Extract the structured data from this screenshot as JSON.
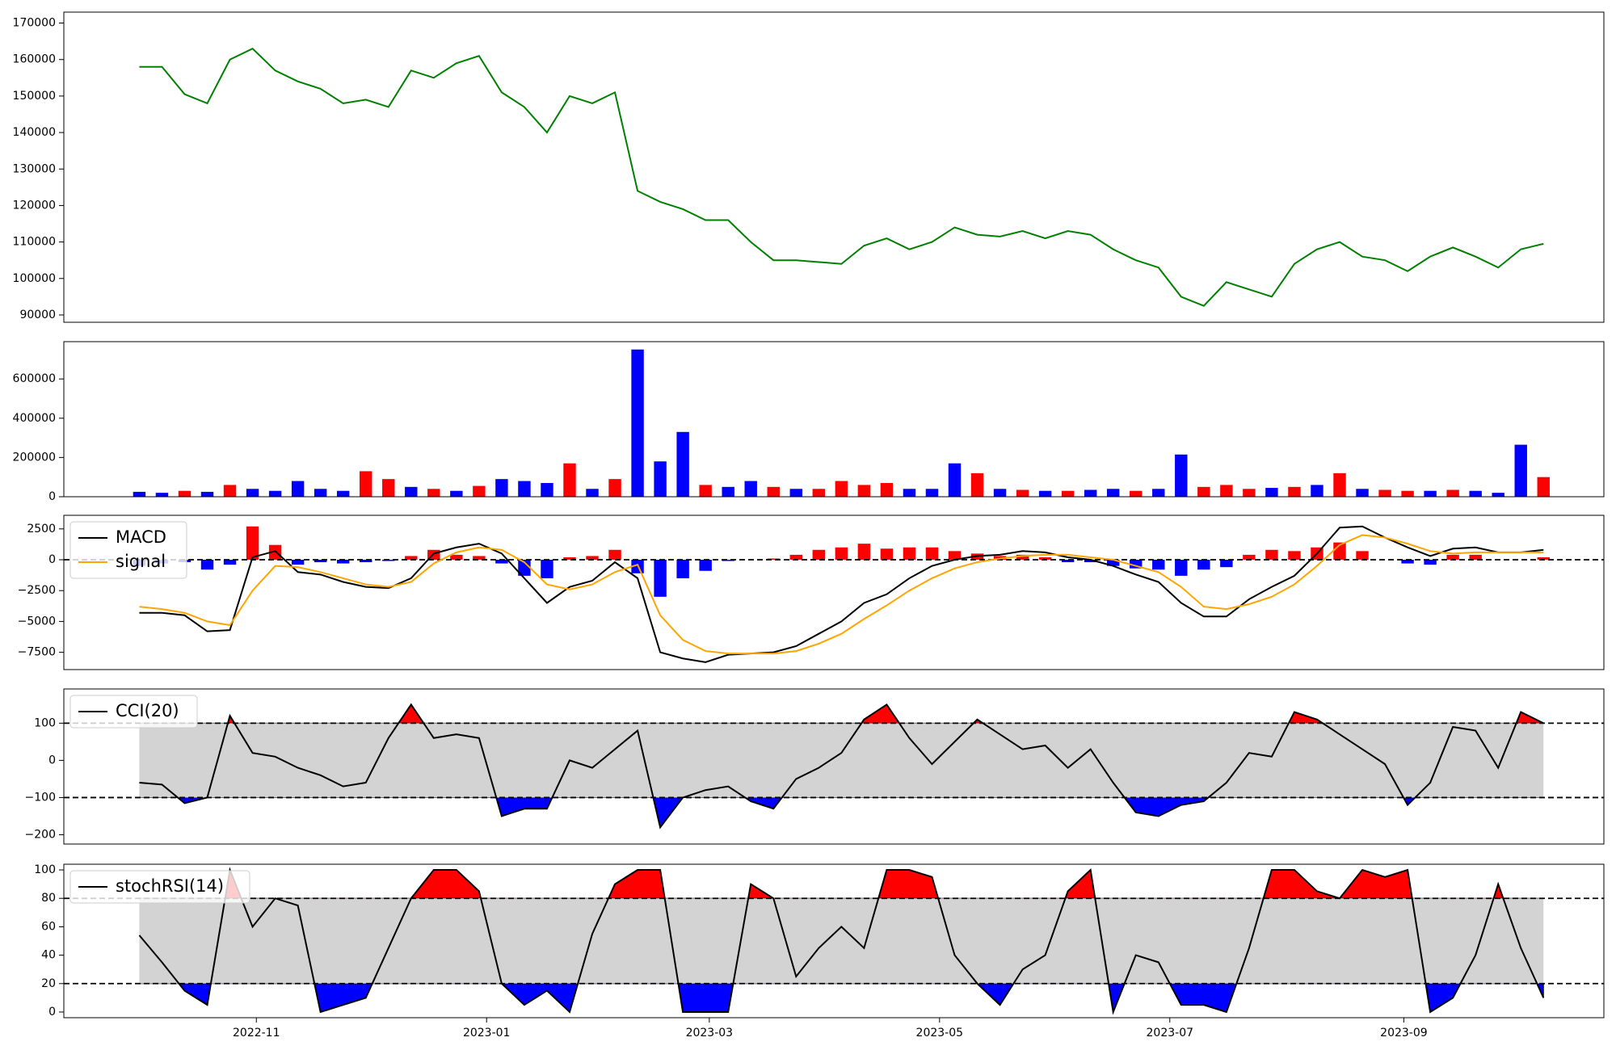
{
  "chart_data": [
    {
      "type": "line",
      "color": "#008000",
      "x": [
        0,
        6,
        12,
        18,
        24,
        30,
        36,
        42,
        48,
        54,
        60,
        66,
        72,
        78,
        84,
        90,
        96,
        102,
        108,
        114,
        120,
        126,
        132,
        138,
        144,
        150,
        156,
        162,
        168,
        174,
        180,
        186,
        192,
        198,
        204,
        210,
        216,
        222,
        228,
        234,
        240,
        246,
        252,
        258,
        264,
        270,
        276,
        282,
        288,
        294,
        300,
        306,
        312,
        318,
        324,
        330,
        336,
        342,
        348,
        354,
        360,
        366,
        372
      ],
      "values": [
        158000,
        158000,
        150500,
        148000,
        160000,
        163000,
        157000,
        154000,
        152000,
        148000,
        149000,
        147000,
        157000,
        155000,
        159000,
        161000,
        151000,
        147000,
        140000,
        150000,
        148000,
        151000,
        124000,
        121000,
        119000,
        116000,
        116000,
        110000,
        105000,
        105000,
        104500,
        104000,
        109000,
        111000,
        108000,
        110000,
        114000,
        112000,
        111500,
        113000,
        111000,
        113000,
        112000,
        108000,
        105000,
        103000,
        95000,
        92500,
        99000,
        97000,
        95000,
        104000,
        108000,
        110000,
        106000,
        105000,
        102000,
        106000,
        108500,
        106000,
        103000,
        108000,
        109500
      ],
      "xlim": [
        -20,
        388
      ],
      "ylim": [
        88000,
        173000
      ],
      "yticks": [
        90000,
        100000,
        110000,
        120000,
        130000,
        140000,
        150000,
        160000,
        170000
      ]
    },
    {
      "type": "bar",
      "x": [
        0,
        6,
        12,
        18,
        24,
        30,
        36,
        42,
        48,
        54,
        60,
        66,
        72,
        78,
        84,
        90,
        96,
        102,
        108,
        114,
        120,
        126,
        132,
        138,
        144,
        150,
        156,
        162,
        168,
        174,
        180,
        186,
        192,
        198,
        204,
        210,
        216,
        222,
        228,
        234,
        240,
        246,
        252,
        258,
        264,
        270,
        276,
        282,
        288,
        294,
        300,
        306,
        312,
        318,
        324,
        330,
        336,
        342,
        348,
        354,
        360,
        366,
        372
      ],
      "values": [
        25000,
        20000,
        30000,
        25000,
        60000,
        40000,
        30000,
        80000,
        40000,
        30000,
        130000,
        90000,
        50000,
        40000,
        30000,
        55000,
        90000,
        80000,
        70000,
        170000,
        40000,
        90000,
        750000,
        180000,
        330000,
        60000,
        50000,
        80000,
        50000,
        40000,
        40000,
        80000,
        60000,
        70000,
        40000,
        40000,
        170000,
        120000,
        40000,
        35000,
        30000,
        30000,
        35000,
        40000,
        30000,
        40000,
        215000,
        50000,
        60000,
        40000,
        45000,
        50000,
        60000,
        120000,
        40000,
        35000,
        30000,
        30000,
        35000,
        30000,
        20000,
        265000,
        100000
      ],
      "colors": [
        "blue",
        "blue",
        "red",
        "blue",
        "red",
        "blue",
        "blue",
        "blue",
        "blue",
        "blue",
        "red",
        "red",
        "blue",
        "red",
        "blue",
        "red",
        "blue",
        "blue",
        "blue",
        "red",
        "blue",
        "red",
        "blue",
        "blue",
        "blue",
        "red",
        "blue",
        "blue",
        "red",
        "blue",
        "red",
        "red",
        "red",
        "red",
        "blue",
        "blue",
        "blue",
        "red",
        "blue",
        "red",
        "blue",
        "red",
        "blue",
        "blue",
        "red",
        "blue",
        "blue",
        "red",
        "red",
        "red",
        "blue",
        "red",
        "blue",
        "red",
        "blue",
        "red",
        "red",
        "blue",
        "red",
        "blue",
        "blue",
        "blue",
        "red"
      ],
      "xlim": [
        -20,
        388
      ],
      "ylim": [
        0,
        790000
      ],
      "yticks": [
        0,
        200000,
        400000,
        600000
      ]
    },
    {
      "type": "combo",
      "x": [
        0,
        6,
        12,
        18,
        24,
        30,
        36,
        42,
        48,
        54,
        60,
        66,
        72,
        78,
        84,
        90,
        96,
        102,
        108,
        114,
        120,
        126,
        132,
        138,
        144,
        150,
        156,
        162,
        168,
        174,
        180,
        186,
        192,
        198,
        204,
        210,
        216,
        222,
        228,
        234,
        240,
        246,
        252,
        258,
        264,
        270,
        276,
        282,
        288,
        294,
        300,
        306,
        312,
        318,
        324,
        330,
        336,
        342,
        348,
        354,
        360,
        366,
        372
      ],
      "series": [
        {
          "name": "MACD",
          "color": "#000000",
          "values": [
            -4300,
            -4300,
            -4500,
            -5800,
            -5700,
            200,
            700,
            -1000,
            -1200,
            -1800,
            -2200,
            -2300,
            -1500,
            500,
            1000,
            1300,
            500,
            -1500,
            -3500,
            -2200,
            -1700,
            -200,
            -1500,
            -7500,
            -8000,
            -8300,
            -7700,
            -7600,
            -7500,
            -7000,
            -6000,
            -5000,
            -3500,
            -2800,
            -1500,
            -500,
            0,
            300,
            400,
            700,
            600,
            200,
            0,
            -500,
            -1200,
            -1800,
            -3500,
            -4600,
            -4600,
            -3200,
            -2200,
            -1300,
            500,
            2600,
            2700,
            1800,
            1000,
            300,
            900,
            1000,
            600,
            600,
            800
          ]
        },
        {
          "name": "signal",
          "color": "#ffa500",
          "values": [
            -3800,
            -4000,
            -4300,
            -5000,
            -5300,
            -2500,
            -500,
            -600,
            -1000,
            -1500,
            -2000,
            -2200,
            -1800,
            -300,
            600,
            1000,
            800,
            -200,
            -2000,
            -2400,
            -2000,
            -1000,
            -400,
            -4500,
            -6500,
            -7400,
            -7600,
            -7600,
            -7600,
            -7400,
            -6800,
            -6000,
            -4800,
            -3700,
            -2500,
            -1500,
            -700,
            -200,
            100,
            300,
            400,
            400,
            200,
            0,
            -500,
            -1000,
            -2200,
            -3800,
            -4000,
            -3600,
            -3000,
            -2000,
            -500,
            1200,
            2000,
            1800,
            1300,
            700,
            500,
            600,
            600,
            600,
            600
          ]
        }
      ],
      "bars": {
        "values": [
          -500,
          -300,
          -200,
          -800,
          -400,
          2700,
          1200,
          -400,
          -200,
          -300,
          -200,
          -100,
          300,
          800,
          400,
          300,
          -300,
          -1300,
          -1500,
          200,
          300,
          800,
          -1100,
          -3000,
          -1500,
          -900,
          -100,
          0,
          100,
          400,
          800,
          1000,
          1300,
          900,
          1000,
          1000,
          700,
          500,
          300,
          400,
          200,
          -200,
          -200,
          -500,
          -700,
          -800,
          -1300,
          -800,
          -600,
          400,
          800,
          700,
          1000,
          1400,
          700,
          0,
          -300,
          -400,
          400,
          400,
          0,
          0,
          200
        ],
        "pos_color": "red",
        "neg_color": "blue"
      },
      "hline": [
        0
      ],
      "xlim": [
        -20,
        388
      ],
      "ylim": [
        -8900,
        3600
      ],
      "yticks": [
        {
          "value": -7500,
          "label": "−7500"
        },
        {
          "value": -5000,
          "label": "−5000"
        },
        {
          "value": -2500,
          "label": "−2500"
        },
        0,
        2500
      ]
    },
    {
      "type": "line",
      "x": [
        0,
        6,
        12,
        18,
        24,
        30,
        36,
        42,
        48,
        54,
        60,
        66,
        72,
        78,
        84,
        90,
        96,
        102,
        108,
        114,
        120,
        126,
        132,
        138,
        144,
        150,
        156,
        162,
        168,
        174,
        180,
        186,
        192,
        198,
        204,
        210,
        216,
        222,
        228,
        234,
        240,
        246,
        252,
        258,
        264,
        270,
        276,
        282,
        288,
        294,
        300,
        306,
        312,
        318,
        324,
        330,
        336,
        342,
        348,
        354,
        360,
        366,
        372
      ],
      "series": [
        {
          "name": "CCI(20)",
          "color": "#000000",
          "values": [
            -60,
            -65,
            -115,
            -100,
            120,
            20,
            10,
            -20,
            -40,
            -70,
            -60,
            60,
            150,
            60,
            70,
            60,
            -150,
            -130,
            -130,
            0,
            -20,
            30,
            80,
            -180,
            -100,
            -80,
            -70,
            -110,
            -130,
            -50,
            -20,
            20,
            110,
            150,
            60,
            -10,
            50,
            110,
            70,
            30,
            40,
            -20,
            30,
            -60,
            -140,
            -150,
            -120,
            -110,
            -60,
            20,
            10,
            130,
            110,
            70,
            30,
            -10,
            -120,
            -60,
            90,
            80,
            -20,
            130,
            100
          ]
        }
      ],
      "band": [
        -100,
        100
      ],
      "band_color": "#d3d3d3",
      "above_color": "red",
      "below_color": "blue",
      "hline": [
        -100,
        100
      ],
      "xlim": [
        -20,
        388
      ],
      "ylim": [
        -225,
        192
      ],
      "yticks": [
        {
          "value": -200,
          "label": "−200"
        },
        {
          "value": -100,
          "label": "−100"
        },
        0,
        100
      ]
    },
    {
      "type": "line",
      "x": [
        0,
        6,
        12,
        18,
        24,
        30,
        36,
        42,
        48,
        54,
        60,
        66,
        72,
        78,
        84,
        90,
        96,
        102,
        108,
        114,
        120,
        126,
        132,
        138,
        144,
        150,
        156,
        162,
        168,
        174,
        180,
        186,
        192,
        198,
        204,
        210,
        216,
        222,
        228,
        234,
        240,
        246,
        252,
        258,
        264,
        270,
        276,
        282,
        288,
        294,
        300,
        306,
        312,
        318,
        324,
        330,
        336,
        342,
        348,
        354,
        360,
        366,
        372
      ],
      "series": [
        {
          "name": "stochRSI(14)",
          "color": "#000000",
          "values": [
            54,
            35,
            15,
            5,
            100,
            60,
            80,
            75,
            0,
            5,
            10,
            45,
            80,
            100,
            100,
            85,
            20,
            5,
            15,
            0,
            55,
            90,
            100,
            100,
            0,
            0,
            0,
            90,
            80,
            25,
            45,
            60,
            45,
            100,
            100,
            95,
            40,
            20,
            5,
            30,
            40,
            85,
            100,
            0,
            40,
            35,
            5,
            5,
            0,
            45,
            100,
            100,
            85,
            80,
            100,
            95,
            100,
            0,
            10,
            40,
            90,
            45,
            10
          ]
        }
      ],
      "band": [
        20,
        80
      ],
      "band_color": "#d3d3d3",
      "above_color": "red",
      "below_color": "blue",
      "hline": [
        20,
        80
      ],
      "xlim": [
        -20,
        388
      ],
      "ylim": [
        -4,
        104
      ],
      "yticks": [
        0,
        20,
        40,
        60,
        80,
        100
      ],
      "xticks": [
        {
          "value": 31,
          "label": "2022-11"
        },
        {
          "value": 92,
          "label": "2023-01"
        },
        {
          "value": 151,
          "label": "2023-03"
        },
        {
          "value": 212,
          "label": "2023-05"
        },
        {
          "value": 273,
          "label": "2023-07"
        },
        {
          "value": 335,
          "label": "2023-09"
        }
      ]
    }
  ]
}
